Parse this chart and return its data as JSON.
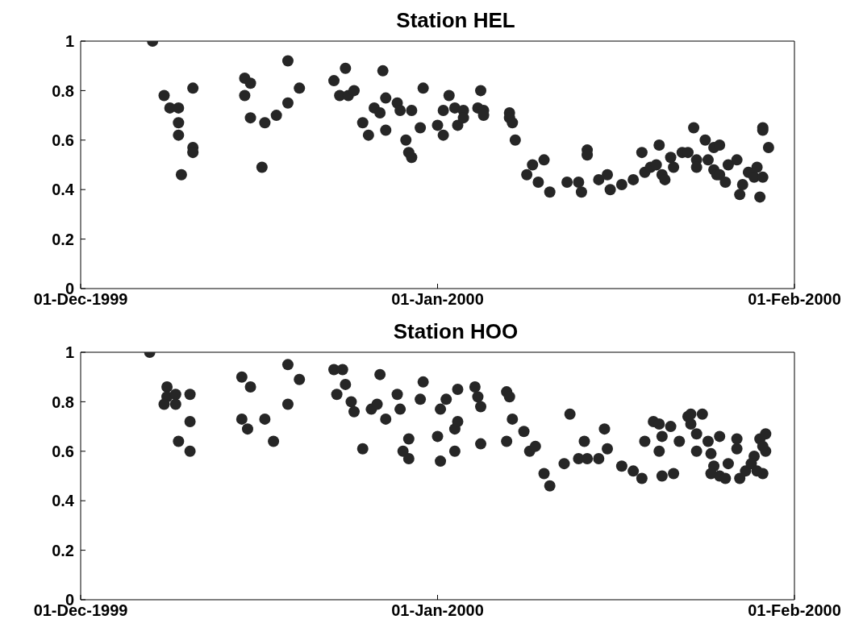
{
  "chart_data": [
    {
      "type": "scatter",
      "title": "Station HEL",
      "color": "#262626",
      "marker": "circle",
      "xlim": [
        "1999-12-01",
        "2000-02-01"
      ],
      "xticks": [
        {
          "value": "1999-12-01",
          "label": "01-Dec-1999"
        },
        {
          "value": "2000-01-01",
          "label": "01-Jan-2000"
        },
        {
          "value": "2000-02-01",
          "label": "01-Feb-2000"
        }
      ],
      "ylim": [
        0,
        1
      ],
      "yticks": [
        0,
        0.2,
        0.4,
        0.6,
        0.8,
        1
      ],
      "x": [
        "1999-12-07T06:00",
        "1999-12-08T06:00",
        "1999-12-08T18:00",
        "1999-12-09T12:00",
        "1999-12-09T12:00",
        "1999-12-09T12:00",
        "1999-12-09T18:00",
        "1999-12-10T18:00",
        "1999-12-10T18:00",
        "1999-12-10T18:00",
        "1999-12-15T06:00",
        "1999-12-15T06:00",
        "1999-12-15T18:00",
        "1999-12-15T18:00",
        "1999-12-16T18:00",
        "1999-12-17T00:00",
        "1999-12-18T00:00",
        "1999-12-19T00:00",
        "1999-12-19T00:00",
        "1999-12-20T00:00",
        "1999-12-23T00:00",
        "1999-12-23T12:00",
        "1999-12-24T00:00",
        "1999-12-24T06:00",
        "1999-12-24T18:00",
        "1999-12-25T12:00",
        "1999-12-26T00:00",
        "1999-12-26T12:00",
        "1999-12-27T00:00",
        "1999-12-27T06:00",
        "1999-12-27T12:00",
        "1999-12-27T12:00",
        "1999-12-28T12:00",
        "1999-12-28T18:00",
        "1999-12-29T06:00",
        "1999-12-29T12:00",
        "1999-12-29T18:00",
        "1999-12-29T18:00",
        "1999-12-30T12:00",
        "1999-12-30T18:00",
        "2000-01-01T00:00",
        "2000-01-01T12:00",
        "2000-01-01T12:00",
        "2000-01-02T00:00",
        "2000-01-02T12:00",
        "2000-01-02T18:00",
        "2000-01-03T06:00",
        "2000-01-03T06:00",
        "2000-01-04T12:00",
        "2000-01-04T18:00",
        "2000-01-05T00:00",
        "2000-01-05T00:00",
        "2000-01-07T06:00",
        "2000-01-07T06:00",
        "2000-01-07T12:00",
        "2000-01-07T18:00",
        "2000-01-08T18:00",
        "2000-01-09T06:00",
        "2000-01-09T18:00",
        "2000-01-10T06:00",
        "2000-01-10T18:00",
        "2000-01-12T06:00",
        "2000-01-13T06:00",
        "2000-01-13T12:00",
        "2000-01-14T00:00",
        "2000-01-14T00:00",
        "2000-01-15T00:00",
        "2000-01-15T18:00",
        "2000-01-16T00:00",
        "2000-01-17T00:00",
        "2000-01-18T00:00",
        "2000-01-18T18:00",
        "2000-01-19T00:00",
        "2000-01-19T12:00",
        "2000-01-20T00:00",
        "2000-01-20T06:00",
        "2000-01-20T12:00",
        "2000-01-20T18:00",
        "2000-01-21T06:00",
        "2000-01-21T12:00",
        "2000-01-22T06:00",
        "2000-01-22T18:00",
        "2000-01-23T06:00",
        "2000-01-23T12:00",
        "2000-01-23T12:00",
        "2000-01-24T06:00",
        "2000-01-24T12:00",
        "2000-01-25T00:00",
        "2000-01-25T00:00",
        "2000-01-25T06:00",
        "2000-01-25T12:00",
        "2000-01-25T12:00",
        "2000-01-26T00:00",
        "2000-01-26T06:00",
        "2000-01-27T00:00",
        "2000-01-27T06:00",
        "2000-01-27T12:00",
        "2000-01-28T00:00",
        "2000-01-28T12:00",
        "2000-01-28T18:00",
        "2000-01-29T00:00",
        "2000-01-29T06:00",
        "2000-01-29T06:00",
        "2000-01-29T06:00",
        "2000-01-29T18:00"
      ],
      "values": [
        1.0,
        0.78,
        0.73,
        0.67,
        0.73,
        0.62,
        0.46,
        0.81,
        0.57,
        0.55,
        0.85,
        0.78,
        0.69,
        0.83,
        0.49,
        0.67,
        0.7,
        0.75,
        0.92,
        0.81,
        0.84,
        0.78,
        0.89,
        0.78,
        0.8,
        0.67,
        0.62,
        0.73,
        0.71,
        0.88,
        0.77,
        0.64,
        0.75,
        0.72,
        0.6,
        0.55,
        0.72,
        0.53,
        0.65,
        0.81,
        0.66,
        0.62,
        0.72,
        0.78,
        0.73,
        0.66,
        0.72,
        0.69,
        0.73,
        0.8,
        0.72,
        0.7,
        0.71,
        0.69,
        0.67,
        0.6,
        0.46,
        0.5,
        0.43,
        0.52,
        0.39,
        0.43,
        0.43,
        0.39,
        0.56,
        0.54,
        0.44,
        0.46,
        0.4,
        0.42,
        0.44,
        0.55,
        0.47,
        0.49,
        0.5,
        0.58,
        0.46,
        0.44,
        0.53,
        0.49,
        0.55,
        0.55,
        0.65,
        0.52,
        0.49,
        0.6,
        0.52,
        0.57,
        0.48,
        0.46,
        0.58,
        0.46,
        0.43,
        0.5,
        0.52,
        0.38,
        0.42,
        0.47,
        0.45,
        0.49,
        0.37,
        0.65,
        0.45,
        0.64,
        0.57
      ]
    },
    {
      "type": "scatter",
      "title": "Station HOO",
      "color": "#262626",
      "marker": "circle",
      "xlim": [
        "1999-12-01",
        "2000-02-01"
      ],
      "xticks": [
        {
          "value": "1999-12-01",
          "label": "01-Dec-1999"
        },
        {
          "value": "2000-01-01",
          "label": "01-Jan-2000"
        },
        {
          "value": "2000-02-01",
          "label": "01-Feb-2000"
        }
      ],
      "ylim": [
        0,
        1
      ],
      "yticks": [
        0,
        0.2,
        0.4,
        0.6,
        0.8,
        1
      ],
      "x": [
        "1999-12-07T00:00",
        "1999-12-08T12:00",
        "1999-12-08T12:00",
        "1999-12-08T06:00",
        "1999-12-09T06:00",
        "1999-12-09T06:00",
        "1999-12-09T12:00",
        "1999-12-10T12:00",
        "1999-12-10T12:00",
        "1999-12-10T12:00",
        "1999-12-15T00:00",
        "1999-12-15T18:00",
        "1999-12-15T00:00",
        "1999-12-15T12:00",
        "1999-12-17T00:00",
        "1999-12-17T18:00",
        "1999-12-19T00:00",
        "1999-12-19T00:00",
        "1999-12-20T00:00",
        "1999-12-23T00:00",
        "1999-12-23T18:00",
        "1999-12-23T06:00",
        "1999-12-24T00:00",
        "1999-12-24T12:00",
        "1999-12-24T18:00",
        "1999-12-25T12:00",
        "1999-12-26T06:00",
        "1999-12-26T18:00",
        "1999-12-27T00:00",
        "1999-12-27T12:00",
        "1999-12-28T12:00",
        "1999-12-28T18:00",
        "1999-12-29T12:00",
        "1999-12-29T00:00",
        "1999-12-29T12:00",
        "1999-12-30T12:00",
        "1999-12-30T18:00",
        "2000-01-01T00:00",
        "2000-01-01T06:00",
        "2000-01-01T06:00",
        "2000-01-01T18:00",
        "2000-01-02T12:00",
        "2000-01-02T12:00",
        "2000-01-02T18:00",
        "2000-01-02T18:00",
        "2000-01-04T06:00",
        "2000-01-04T12:00",
        "2000-01-04T18:00",
        "2000-01-04T18:00",
        "2000-01-07T00:00",
        "2000-01-07T00:00",
        "2000-01-07T06:00",
        "2000-01-07T12:00",
        "2000-01-08T12:00",
        "2000-01-09T00:00",
        "2000-01-09T12:00",
        "2000-01-10T06:00",
        "2000-01-10T18:00",
        "2000-01-12T00:00",
        "2000-01-12T12:00",
        "2000-01-13T06:00",
        "2000-01-13T18:00",
        "2000-01-14T00:00",
        "2000-01-15T00:00",
        "2000-01-15T12:00",
        "2000-01-15T18:00",
        "2000-01-17T00:00",
        "2000-01-18T00:00",
        "2000-01-18T18:00",
        "2000-01-19T00:00",
        "2000-01-19T18:00",
        "2000-01-20T06:00",
        "2000-01-20T12:00",
        "2000-01-20T06:00",
        "2000-01-20T12:00",
        "2000-01-21T12:00",
        "2000-01-21T06:00",
        "2000-01-22T00:00",
        "2000-01-22T18:00",
        "2000-01-23T00:00",
        "2000-01-23T00:00",
        "2000-01-23T12:00",
        "2000-01-24T00:00",
        "2000-01-23T12:00",
        "2000-01-24T12:00",
        "2000-01-24T18:00",
        "2000-01-25T00:00",
        "2000-01-24T18:00",
        "2000-01-25T12:00",
        "2000-01-26T00:00",
        "2000-01-25T12:00",
        "2000-01-26T06:00",
        "2000-01-27T00:00",
        "2000-01-27T00:00",
        "2000-01-27T06:00",
        "2000-01-27T18:00",
        "2000-01-28T12:00",
        "2000-01-28T06:00",
        "2000-01-29T06:00",
        "2000-01-28T18:00",
        "2000-01-29T00:00",
        "2000-01-29T12:00",
        "2000-01-29T12:00",
        "2000-01-29T06:00"
      ],
      "values": [
        1.0,
        0.86,
        0.82,
        0.79,
        0.83,
        0.79,
        0.64,
        0.83,
        0.72,
        0.6,
        0.9,
        0.86,
        0.73,
        0.69,
        0.73,
        0.64,
        0.95,
        0.79,
        0.89,
        0.93,
        0.93,
        0.83,
        0.87,
        0.8,
        0.76,
        0.61,
        0.77,
        0.79,
        0.91,
        0.73,
        0.83,
        0.77,
        0.65,
        0.6,
        0.57,
        0.81,
        0.88,
        0.66,
        0.56,
        0.77,
        0.81,
        0.6,
        0.69,
        0.72,
        0.85,
        0.86,
        0.82,
        0.78,
        0.63,
        0.64,
        0.84,
        0.82,
        0.73,
        0.68,
        0.6,
        0.62,
        0.51,
        0.46,
        0.55,
        0.75,
        0.57,
        0.64,
        0.57,
        0.57,
        0.69,
        0.61,
        0.54,
        0.52,
        0.49,
        0.64,
        0.72,
        0.71,
        0.66,
        0.6,
        0.5,
        0.51,
        0.7,
        0.64,
        0.74,
        0.75,
        0.71,
        0.67,
        0.75,
        0.6,
        0.64,
        0.59,
        0.54,
        0.51,
        0.5,
        0.49,
        0.66,
        0.55,
        0.65,
        0.61,
        0.49,
        0.52,
        0.58,
        0.55,
        0.51,
        0.52,
        0.65,
        0.67,
        0.6,
        0.62
      ]
    }
  ]
}
